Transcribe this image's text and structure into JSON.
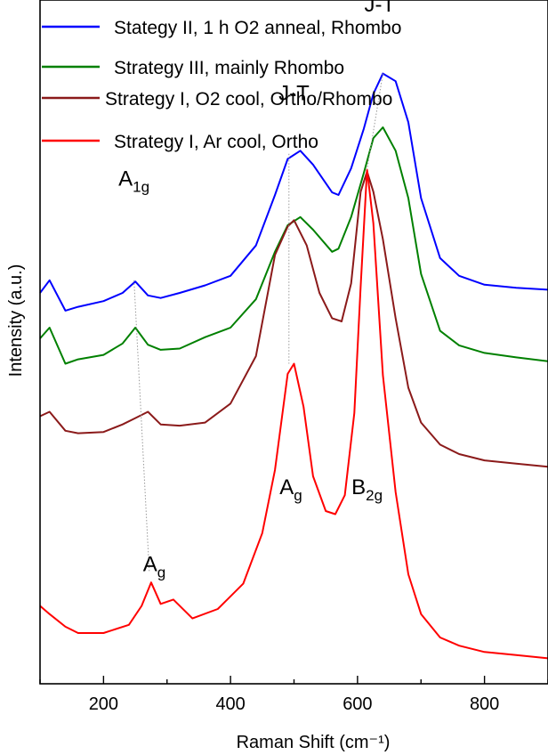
{
  "chart_data": {
    "type": "line",
    "xlabel": "Raman Shift (cm⁻¹)",
    "ylabel": "Intensity (a.u.)",
    "xlim": [
      100,
      900
    ],
    "ylim": [
      0,
      10
    ],
    "xticks": [
      200,
      400,
      600,
      800
    ],
    "yticks": [],
    "grid": false,
    "legend_position": "top-left",
    "series": [
      {
        "name": "Stategy II, 1 h O2 anneal, Rhombo",
        "color": "#0000ff",
        "x": [
          100,
          115,
          140,
          160,
          200,
          230,
          250,
          270,
          290,
          320,
          360,
          400,
          440,
          470,
          490,
          510,
          530,
          560,
          570,
          590,
          610,
          625,
          640,
          660,
          680,
          700,
          730,
          760,
          800,
          850,
          900
        ],
        "y": [
          6.0,
          6.2,
          5.72,
          5.78,
          5.87,
          6.0,
          6.18,
          5.96,
          5.92,
          6.0,
          6.12,
          6.27,
          6.75,
          7.55,
          8.12,
          8.25,
          8.03,
          7.59,
          7.55,
          7.97,
          8.6,
          9.15,
          9.47,
          9.35,
          8.7,
          7.5,
          6.55,
          6.27,
          6.13,
          6.08,
          6.05
        ]
      },
      {
        "name": "Strategy III, mainly Rhombo",
        "color": "#008000",
        "x": [
          100,
          115,
          140,
          160,
          200,
          230,
          250,
          270,
          290,
          320,
          360,
          400,
          440,
          470,
          490,
          510,
          530,
          560,
          570,
          590,
          610,
          625,
          640,
          660,
          680,
          700,
          730,
          760,
          800,
          850,
          900
        ],
        "y": [
          5.28,
          5.45,
          4.88,
          4.95,
          5.02,
          5.2,
          5.45,
          5.18,
          5.1,
          5.12,
          5.3,
          5.45,
          5.9,
          6.65,
          7.07,
          7.2,
          7.0,
          6.65,
          6.7,
          7.2,
          7.9,
          8.45,
          8.62,
          8.25,
          7.5,
          6.3,
          5.4,
          5.17,
          5.05,
          4.98,
          4.92
        ]
      },
      {
        "name": "Strategy I, O2 cool, Ortho/Rhombo",
        "color": "#8b1a1a",
        "x": [
          100,
          115,
          140,
          160,
          200,
          230,
          250,
          270,
          290,
          320,
          360,
          400,
          440,
          470,
          490,
          500,
          520,
          540,
          560,
          575,
          590,
          605,
          615,
          625,
          640,
          660,
          680,
          700,
          730,
          760,
          800,
          850,
          900
        ],
        "y": [
          4.05,
          4.12,
          3.82,
          3.78,
          3.8,
          3.92,
          4.02,
          4.12,
          3.92,
          3.9,
          3.95,
          4.25,
          5.0,
          6.6,
          7.05,
          7.15,
          6.75,
          6.0,
          5.6,
          5.55,
          6.15,
          7.6,
          7.92,
          7.6,
          6.85,
          5.6,
          4.5,
          3.95,
          3.6,
          3.45,
          3.35,
          3.3,
          3.25
        ]
      },
      {
        "name": "Strategy I, Ar cool, Ortho",
        "color": "#ff0000",
        "x": [
          100,
          115,
          140,
          160,
          200,
          240,
          260,
          275,
          290,
          310,
          340,
          380,
          420,
          450,
          470,
          490,
          500,
          515,
          530,
          550,
          565,
          580,
          595,
          605,
          615,
          625,
          640,
          660,
          680,
          700,
          730,
          760,
          800,
          850,
          900
        ],
        "y": [
          1.05,
          0.92,
          0.72,
          0.62,
          0.62,
          0.75,
          1.05,
          1.42,
          1.08,
          1.15,
          0.85,
          1.0,
          1.4,
          2.2,
          3.2,
          4.72,
          4.88,
          4.2,
          3.1,
          2.55,
          2.5,
          2.8,
          4.1,
          6.1,
          7.95,
          7.1,
          4.7,
          2.85,
          1.55,
          0.92,
          0.55,
          0.42,
          0.32,
          0.27,
          0.22
        ]
      }
    ],
    "annotations": [
      {
        "text": "J-T",
        "x": 500,
        "y": 9.05
      },
      {
        "text": "J-T",
        "x": 635,
        "y": 10.45
      },
      {
        "text": "A",
        "sub": "1g",
        "x": 248,
        "y": 7.7
      },
      {
        "text": "A",
        "sub": "g",
        "x": 280,
        "y": 1.6
      },
      {
        "text": "A",
        "sub": "g",
        "x": 495,
        "y": 2.82
      },
      {
        "text": "B",
        "sub": "2g",
        "x": 615,
        "y": 2.82
      }
    ],
    "guide_lines": [
      {
        "from": [
          248,
          6.2
        ],
        "to": [
          272,
          1.6
        ]
      },
      {
        "from": [
          492,
          8.2
        ],
        "to": [
          492,
          4.88
        ]
      },
      {
        "from": [
          640,
          9.47
        ],
        "to": [
          615,
          7.95
        ]
      }
    ]
  }
}
